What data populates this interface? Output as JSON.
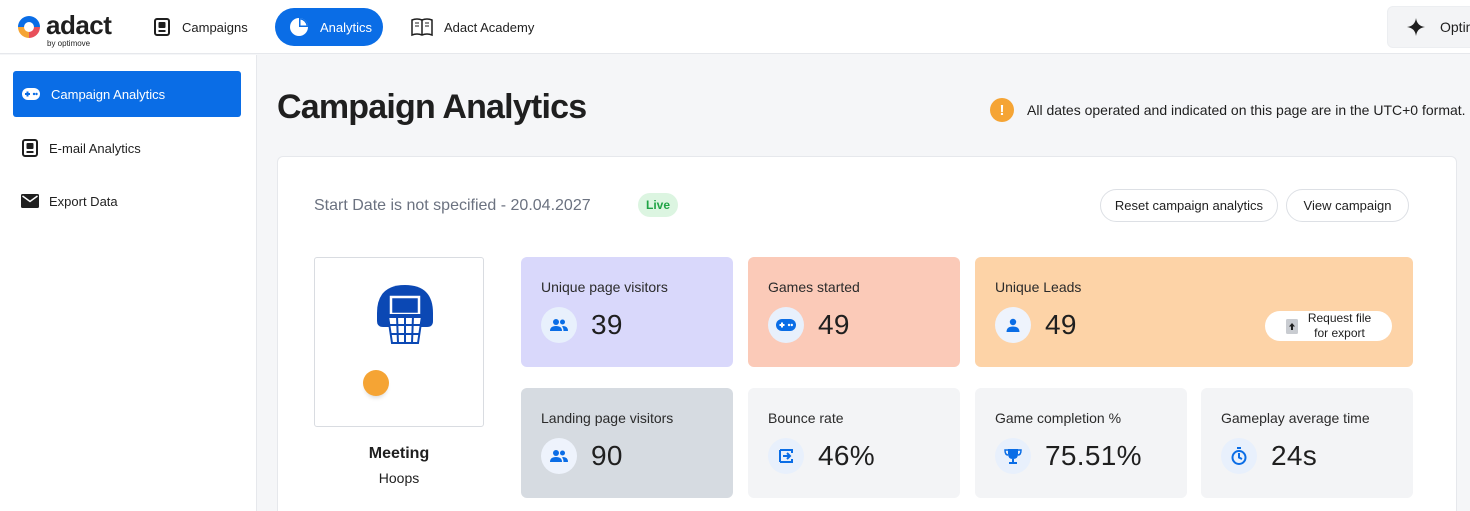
{
  "brand": {
    "name": "adact",
    "byline": "by optimove"
  },
  "nav": {
    "campaigns": "Campaigns",
    "analytics": "Analytics",
    "academy": "Adact Academy",
    "opti": "Optimove"
  },
  "sidebar": {
    "items": [
      {
        "label": "Campaign Analytics",
        "icon": "gamepad-icon",
        "active": true
      },
      {
        "label": "E-mail Analytics",
        "icon": "book-icon",
        "active": false
      },
      {
        "label": "Export Data",
        "icon": "envelope-icon",
        "active": false
      }
    ]
  },
  "page": {
    "title": "Campaign Analytics",
    "utc_note": "All dates operated and indicated on this page are in the UTC+0 format."
  },
  "summary": {
    "date_range": "Start Date is not specified - 20.04.2027",
    "status": "Live",
    "reset_label": "Reset campaign analytics",
    "view_label": "View campaign"
  },
  "campaign": {
    "name": "Meeting",
    "type": "Hoops"
  },
  "stats": {
    "unique_visitors": {
      "label": "Unique page visitors",
      "value": "39"
    },
    "games_started": {
      "label": "Games started",
      "value": "49"
    },
    "unique_leads": {
      "label": "Unique Leads",
      "value": "49",
      "export_line1": "Request file",
      "export_line2": "for export"
    },
    "landing_visitors": {
      "label": "Landing page visitors",
      "value": "90"
    },
    "bounce_rate": {
      "label": "Bounce rate",
      "value": "46%"
    },
    "completion": {
      "label": "Game completion %",
      "value": "75.51%"
    },
    "avg_time": {
      "label": "Gameplay average time",
      "value": "24s"
    }
  },
  "colors": {
    "primary": "#0a6de6",
    "accent_orange": "#f5a434",
    "live_green": "#21a446",
    "card_purple": "#d9d8fb",
    "card_salmon": "#fbcab8",
    "card_peach": "#fdd3a7",
    "card_slate": "#d6dbe1"
  }
}
